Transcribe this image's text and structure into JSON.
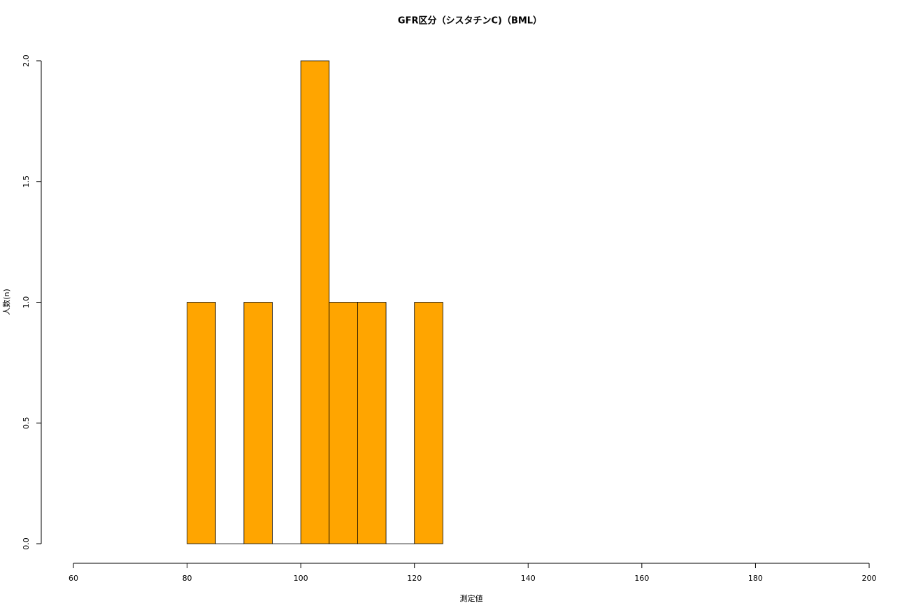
{
  "chart_data": {
    "type": "histogram",
    "title": "GFR区分（シスタチンC)（BML）",
    "x_label": "測定値",
    "y_label": "人数(n)",
    "bins": [
      80,
      85,
      90,
      95,
      100,
      105,
      110,
      115,
      120,
      125
    ],
    "values": [
      1,
      0,
      1,
      0,
      2,
      1,
      1,
      0,
      1
    ],
    "color": "#ffa500",
    "xlim": [
      60,
      200
    ],
    "xticks": [
      60,
      80,
      100,
      120,
      140,
      160,
      180,
      200
    ],
    "ylim": [
      0,
      2
    ],
    "yticks": [
      {
        "value": 0,
        "label": "0.0"
      },
      {
        "value": 0.5,
        "label": "0.5"
      },
      {
        "value": 1,
        "label": "1.0"
      },
      {
        "value": 1.5,
        "label": "1.5"
      },
      {
        "value": 2,
        "label": "2.0"
      }
    ],
    "grid": false
  }
}
